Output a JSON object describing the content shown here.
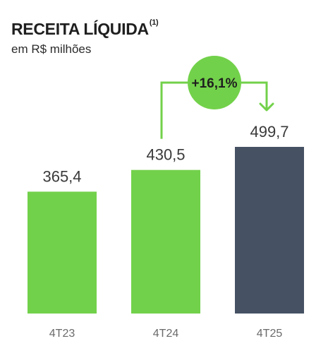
{
  "header": {
    "title": "RECEITA LÍQUIDA",
    "title_note": "(1)",
    "subtitle": "em R$ milhões"
  },
  "colors": {
    "green": "#72d14a",
    "navy": "#465264"
  },
  "chart_data": {
    "type": "bar",
    "title": "RECEITA LÍQUIDA",
    "subtitle": "em R$ milhões",
    "categories": [
      "4T23",
      "4T24",
      "4T25"
    ],
    "values": [
      365.4,
      430.5,
      499.7
    ],
    "value_labels": [
      "365,4",
      "430,5",
      "499,7"
    ],
    "bar_colors": [
      "#72d14a",
      "#72d14a",
      "#465264"
    ],
    "ylim": [
      0,
      499.7
    ],
    "grid": false,
    "legend": "none",
    "annotation": {
      "label": "+16,1%",
      "from": "4T24",
      "to": "4T25",
      "color": "#72d14a"
    }
  }
}
